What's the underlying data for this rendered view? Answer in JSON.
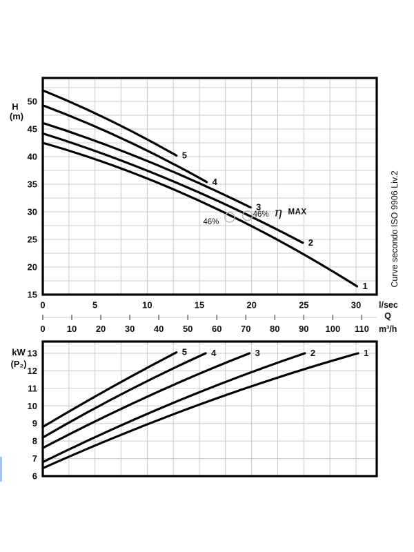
{
  "figure": {
    "iso_note": "Curve secondo ISO 9906 Liv.2"
  },
  "chart_data": [
    {
      "id": "head_chart",
      "type": "line",
      "ylabel": "H",
      "ylabel_unit": "(m)",
      "ylim": [
        15,
        54.25
      ],
      "y_ticks": [
        50,
        45,
        40,
        35,
        30,
        25,
        20,
        15
      ],
      "y_minor_step": 2.5,
      "xlim_lsec": [
        0,
        32
      ],
      "x_ticks_lsec": [
        0,
        5,
        10,
        15,
        20,
        25,
        30
      ],
      "x_axis_label_lsec": "l/sec",
      "x_title": "Q",
      "x_ticks_m3h": [
        0,
        10,
        20,
        30,
        40,
        50,
        60,
        70,
        80,
        90,
        100,
        110
      ],
      "x_axis_label_m3h": "m³/h",
      "grid": true,
      "legend_position": "none",
      "series": [
        {
          "name": "5",
          "points": [
            [
              0,
              52.0
            ],
            [
              6.4,
              46.6
            ],
            [
              12.8,
              40.2
            ]
          ]
        },
        {
          "name": "4",
          "points": [
            [
              0,
              49.3
            ],
            [
              7.9,
              43.0
            ],
            [
              15.7,
              35.4
            ]
          ]
        },
        {
          "name": "3",
          "points": [
            [
              0,
              46.1
            ],
            [
              9.9,
              39.3
            ],
            [
              19.9,
              30.8
            ]
          ]
        },
        {
          "name": "2",
          "points": [
            [
              0,
              44.2
            ],
            [
              12.4,
              35.6
            ],
            [
              24.9,
              24.4
            ]
          ]
        },
        {
          "name": "1",
          "points": [
            [
              0,
              42.5
            ],
            [
              15.0,
              32.0
            ],
            [
              30.1,
              16.5
            ]
          ]
        }
      ],
      "annotations": {
        "eta_symbol": "η",
        "max_label": "MAX",
        "efficiency_points": [
          {
            "label": "46%",
            "q": 17.9,
            "h": 29.0,
            "label_style": "gray"
          },
          {
            "label": "46%",
            "q": 19.6,
            "h": 29.3,
            "label_style": "dark"
          }
        ]
      }
    },
    {
      "id": "power_chart",
      "type": "line",
      "ylabel": "kW",
      "ylabel_unit": "(P₂)",
      "ylim": [
        6,
        13.67
      ],
      "y_ticks": [
        13,
        12,
        11,
        10,
        9,
        8,
        7,
        6
      ],
      "y_minor_step": 1,
      "grid": true,
      "legend_position": "none",
      "series": [
        {
          "name": "5",
          "points": [
            [
              0,
              8.8
            ],
            [
              6.4,
              11.0
            ],
            [
              12.8,
              13.05
            ]
          ]
        },
        {
          "name": "4",
          "points": [
            [
              0,
              8.2
            ],
            [
              7.8,
              10.75
            ],
            [
              15.6,
              13.0
            ]
          ]
        },
        {
          "name": "3",
          "points": [
            [
              0,
              7.6
            ],
            [
              9.9,
              10.5
            ],
            [
              19.8,
              13.0
            ]
          ]
        },
        {
          "name": "2",
          "points": [
            [
              0,
              6.8
            ],
            [
              12.6,
              10.2
            ],
            [
              25.1,
              13.0
            ]
          ]
        },
        {
          "name": "1",
          "points": [
            [
              0,
              6.45
            ],
            [
              15.1,
              10.1
            ],
            [
              30.2,
              13.0
            ]
          ]
        }
      ]
    }
  ],
  "colors": {
    "curve": "#000000",
    "grid": "#c9c9c9",
    "border": "#000000",
    "m3h_axis_line": "#c9c9c9",
    "m3h_tick": "#444444",
    "efficiency_circle": "#b5b5b5",
    "efficiency_label_dark": "#4a4a4a",
    "efficiency_label_gray": "#8c8c8c",
    "left_fragment_blue": "#a6c8f0"
  }
}
